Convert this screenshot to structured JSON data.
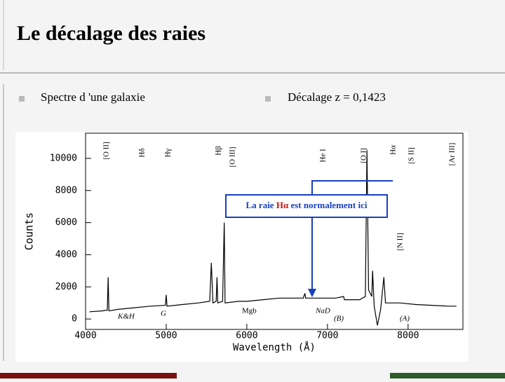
{
  "slide": {
    "title": "Le décalage des raies",
    "bullets": [
      "Spectre d 'une galaxie",
      "Décalage  z = 0,1423"
    ]
  },
  "chart_data": {
    "type": "line",
    "ylabel": "Counts",
    "xlabel": "Wavelength (Å)",
    "x": [
      4050,
      4200,
      4270,
      4280,
      4290,
      4400,
      4600,
      4800,
      4990,
      5000,
      5010,
      5200,
      5400,
      5540,
      5560,
      5580,
      5620,
      5630,
      5640,
      5700,
      5720,
      5730,
      5900,
      6000,
      6200,
      6400,
      6600,
      6700,
      6720,
      6730,
      6900,
      7100,
      7200,
      7210,
      7400,
      7470,
      7490,
      7510,
      7550,
      7560,
      7580,
      7620,
      7660,
      7700,
      7720,
      7900,
      8100,
      8300,
      8500,
      8600
    ],
    "values": [
      450,
      500,
      550,
      2600,
      500,
      600,
      700,
      800,
      850,
      1500,
      800,
      900,
      1000,
      1100,
      3500,
      1000,
      1100,
      2600,
      1000,
      1100,
      6000,
      1000,
      1100,
      1100,
      1200,
      1300,
      1300,
      1300,
      1600,
      1300,
      1300,
      1300,
      1400,
      1200,
      1200,
      1400,
      10500,
      1800,
      1400,
      3000,
      800,
      -400,
      600,
      2600,
      1000,
      1000,
      900,
      850,
      800,
      800
    ],
    "color": "#000000",
    "xlim": [
      4000,
      8680
    ],
    "ylim": [
      -650,
      11570
    ],
    "xticks": [
      4000,
      5000,
      6000,
      7000,
      8000
    ],
    "yticks": [
      0,
      2000,
      4000,
      6000,
      8000,
      10000
    ],
    "line_labels": [
      "[O II]",
      "Hδ",
      "Hγ",
      "Hβ",
      "[O III]",
      "He I",
      "[O I]",
      "Hα",
      "[S II]",
      "[Ar III]",
      "[N II]"
    ],
    "feature_labels": [
      "K&H",
      "G",
      "Mgb",
      "NaD",
      "(B)",
      "(A)"
    ],
    "note": [
      "La raie ",
      "Hα",
      " est normalement ici"
    ]
  }
}
